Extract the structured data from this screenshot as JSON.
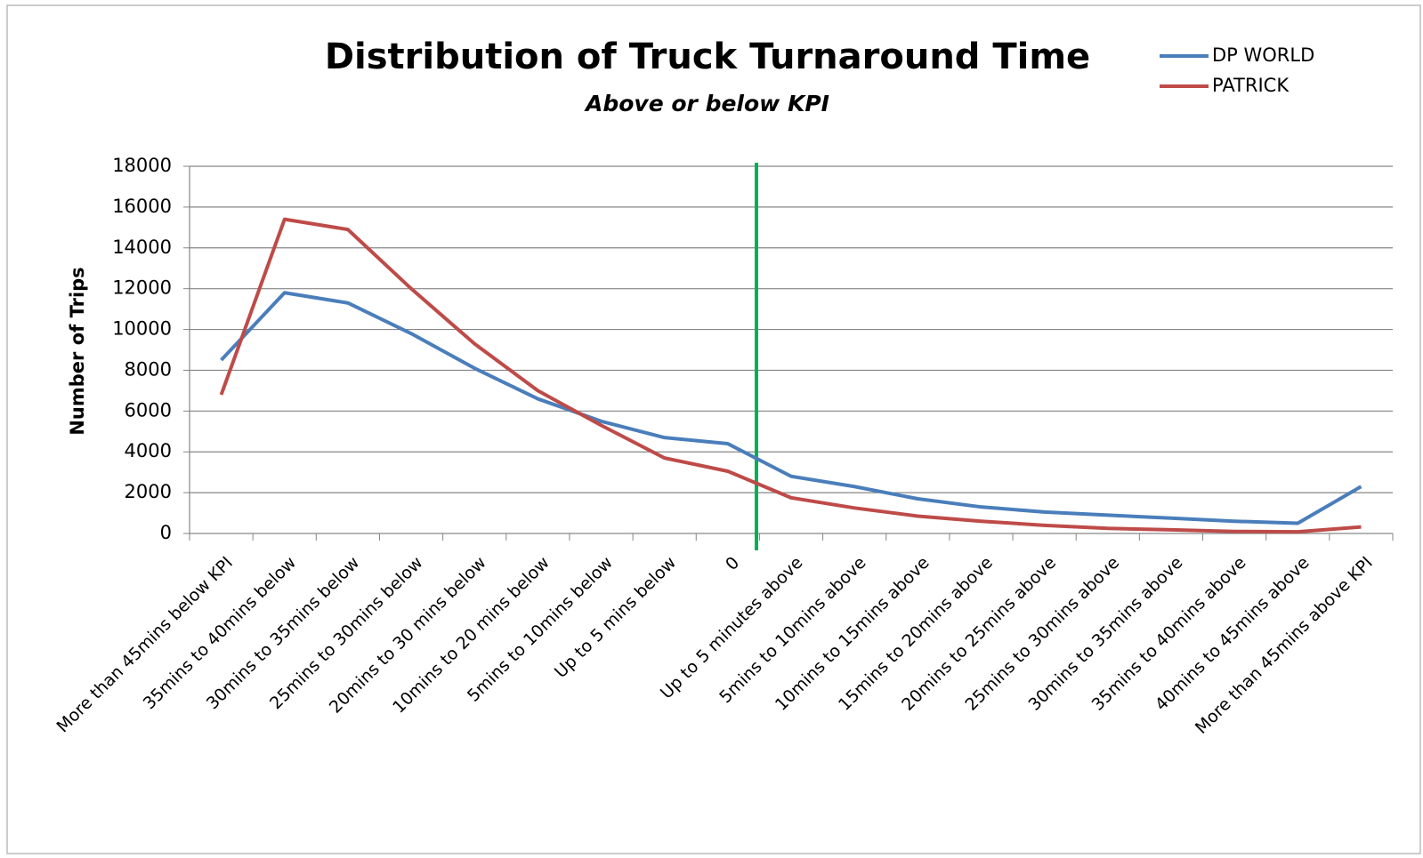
{
  "chart_data": {
    "type": "line",
    "title": "Distribution of Truck Turnaround Time",
    "subtitle": "Above or below KPI",
    "y_label": "Number of Trips",
    "categories": [
      "More than 45mins below KPI",
      "35mins to 40mins below",
      "30mins to 35mins below",
      "25mins to 30mins below",
      "20mins to 30 mins below",
      "10mins to 20 mins below",
      "5mins to 10mins below",
      "Up to 5 mins below",
      "0",
      "Up to 5 minutes above",
      "5mins to 10mins above",
      "10mins to 15mins above",
      "15mins to 20mins above",
      "20mins to 25mins above",
      "25mins to 30mins above",
      "30mins to 35mins above",
      "35mins to 40mins above",
      "40mins to 45mins above",
      "More than 45mins above KPI"
    ],
    "series": [
      {
        "name": "DP WORLD",
        "color": "#4a7ebb",
        "values": [
          8500,
          11800,
          11300,
          9800,
          8100,
          6600,
          5500,
          4700,
          4400,
          2800,
          2300,
          1700,
          1300,
          1050,
          900,
          750,
          600,
          500,
          2300
        ]
      },
      {
        "name": "PATRICK",
        "color": "#be4b48",
        "values": [
          6800,
          15400,
          14900,
          12000,
          9300,
          7000,
          5300,
          3700,
          3050,
          1750,
          1250,
          850,
          600,
          400,
          250,
          180,
          100,
          80,
          320
        ]
      }
    ],
    "ylim": [
      0,
      18000
    ],
    "yticks": [
      0,
      2000,
      4000,
      6000,
      8000,
      10000,
      12000,
      14000,
      16000,
      18000
    ],
    "grid": true
  }
}
